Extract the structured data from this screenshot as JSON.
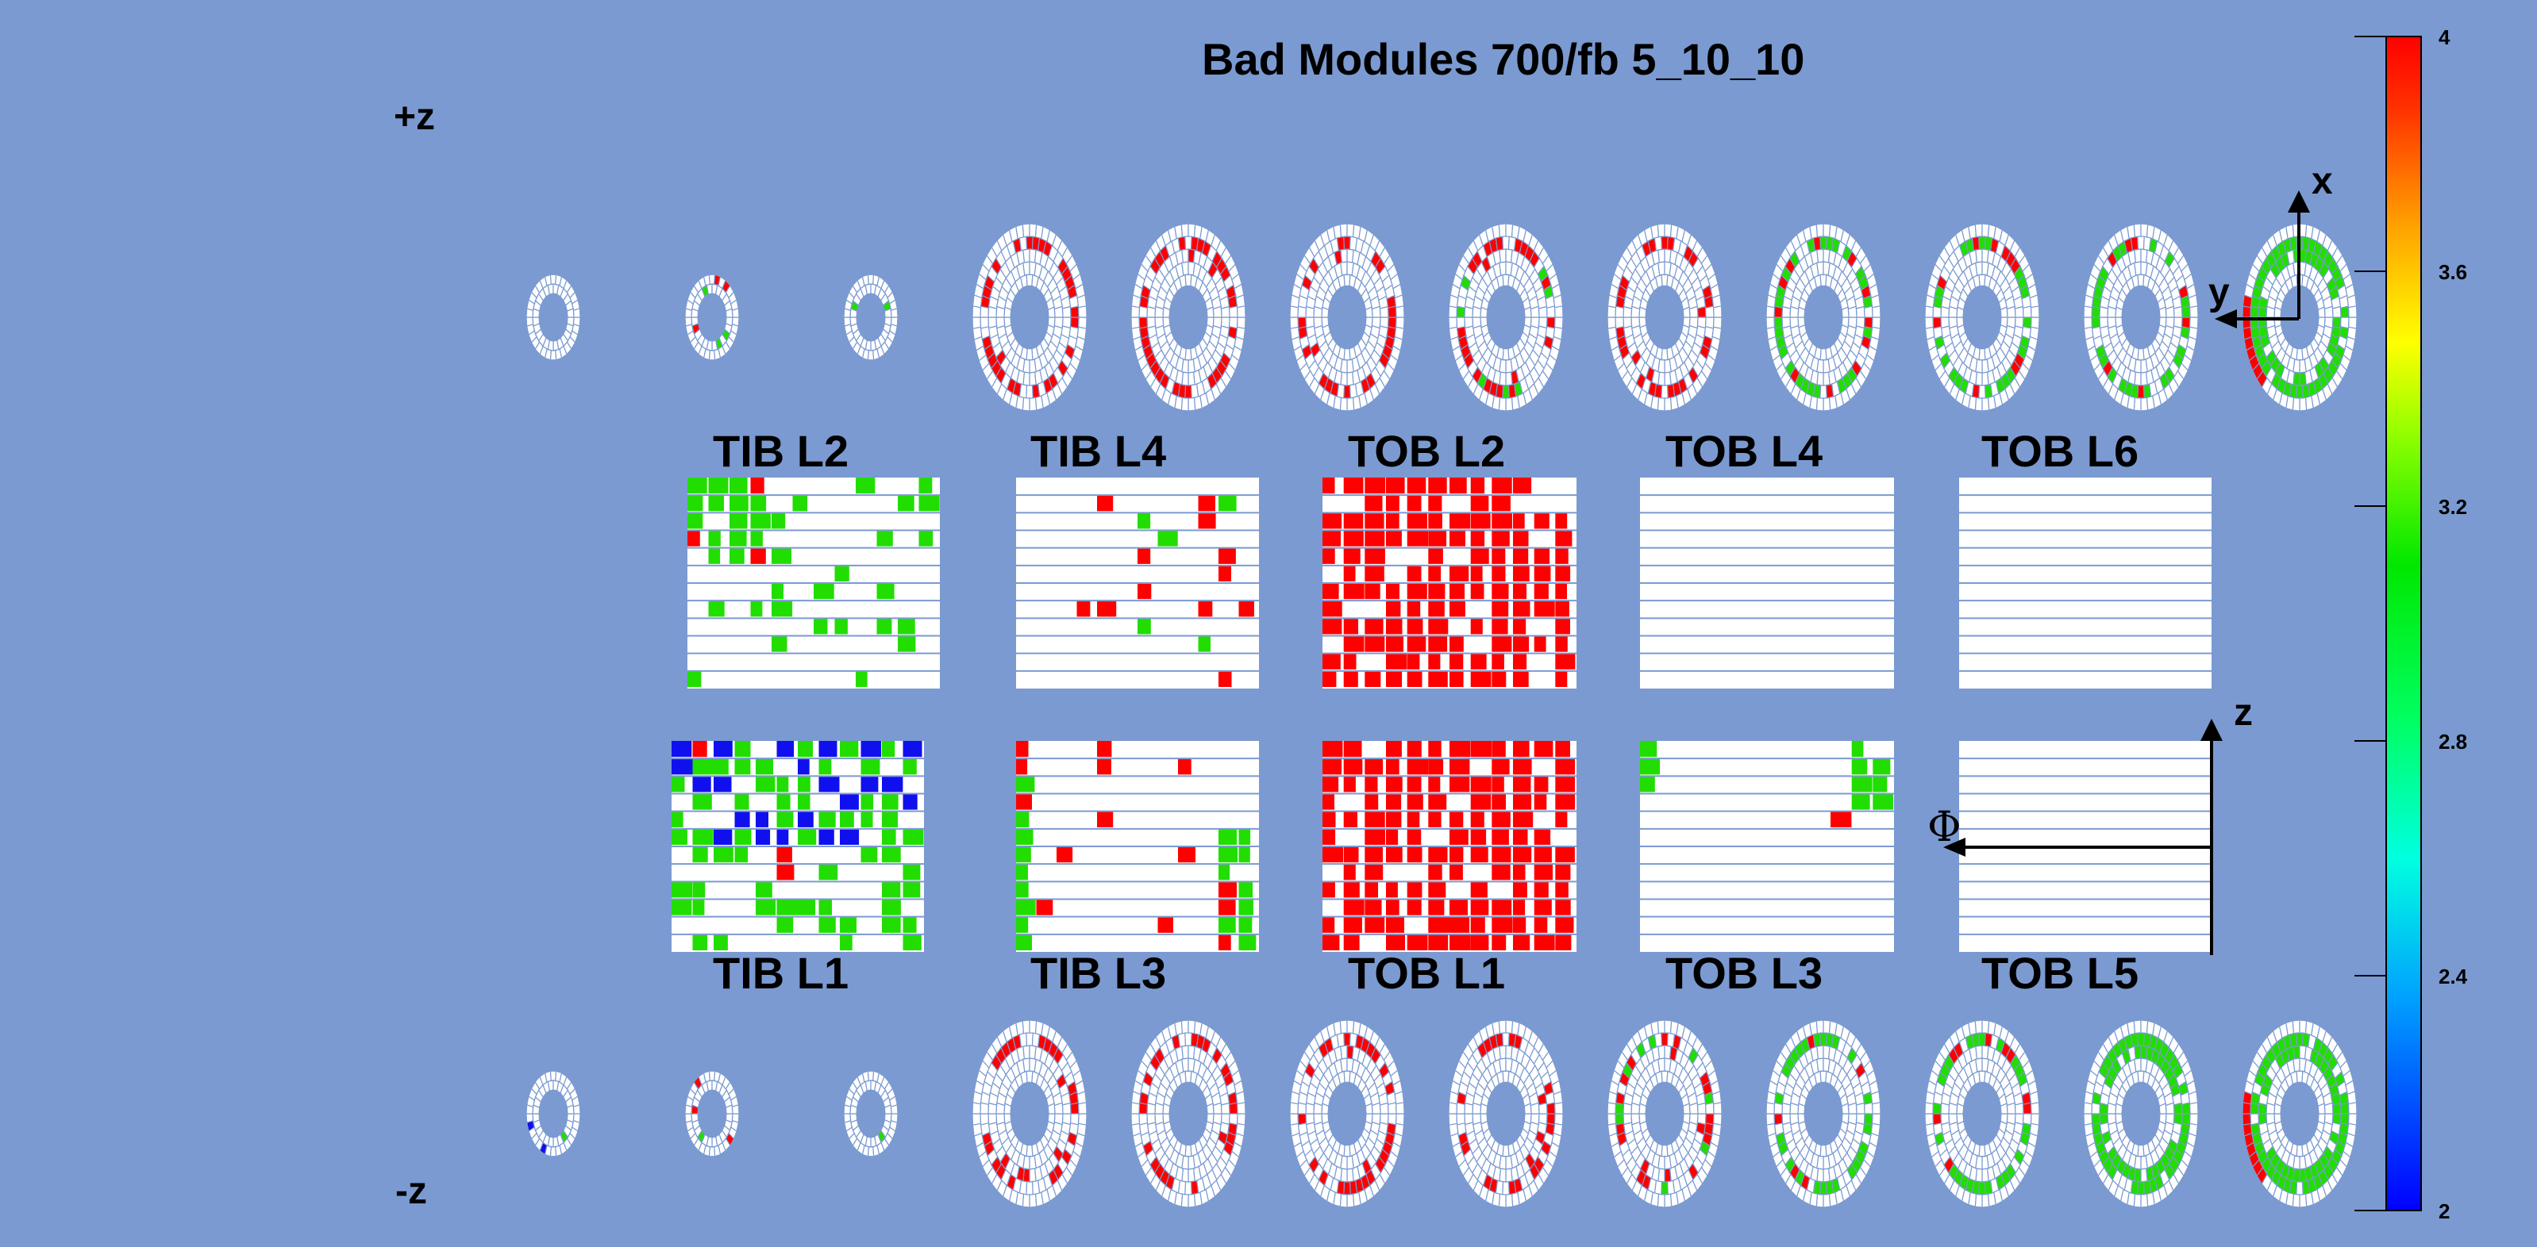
{
  "title": "Bad Modules 700/fb 5_10_10",
  "labels": {
    "plus_z": "+z",
    "minus_z": "-z",
    "axis_x": "x",
    "axis_y": "y",
    "axis_z": "z",
    "axis_phi": "Φ"
  },
  "colors": {
    "background": "#7b9ad1",
    "good": "#ffffff",
    "red": "#ff0000",
    "green": "#22dd00",
    "blue": "#1010ee",
    "grid": "#7b9ad1"
  },
  "chart_data": {
    "type": "heatmap",
    "title": "Bad Modules 700/fb 5_10_10",
    "colorbar": {
      "min": 2,
      "max": 4,
      "ticks": [
        "4",
        "3.6",
        "3.2",
        "2.8",
        "2.4",
        "2"
      ]
    },
    "layers_top": [
      {
        "name": "TIB L2",
        "fill": "tib_mixed"
      },
      {
        "name": "TIB L4",
        "fill": "sparse_red"
      },
      {
        "name": "TOB L2",
        "fill": "mostly_red"
      },
      {
        "name": "TOB L4",
        "fill": "empty"
      },
      {
        "name": "TOB L6",
        "fill": "empty"
      }
    ],
    "layers_bottom": [
      {
        "name": "TIB L1",
        "fill": "tib_blue_green"
      },
      {
        "name": "TIB L3",
        "fill": "mixed_green_red"
      },
      {
        "name": "TOB L1",
        "fill": "full_red"
      },
      {
        "name": "TOB L3",
        "fill": "corner_green"
      },
      {
        "name": "TOB L5",
        "fill": "empty"
      }
    ],
    "disks_plus_z": [
      {
        "size": "small",
        "ring": "none"
      },
      {
        "size": "small",
        "ring": "red_few"
      },
      {
        "size": "small",
        "ring": "none"
      },
      {
        "size": "large",
        "ring": "red"
      },
      {
        "size": "large",
        "ring": "red"
      },
      {
        "size": "large",
        "ring": "red"
      },
      {
        "size": "large",
        "ring": "red_green"
      },
      {
        "size": "large",
        "ring": "red"
      },
      {
        "size": "large",
        "ring": "green_red"
      },
      {
        "size": "large",
        "ring": "green_red"
      },
      {
        "size": "large",
        "ring": "green_red"
      },
      {
        "size": "large",
        "ring": "green_outer_red"
      }
    ],
    "disks_minus_z": [
      {
        "size": "small",
        "ring": "blue_few"
      },
      {
        "size": "small",
        "ring": "red_few"
      },
      {
        "size": "small",
        "ring": "none"
      },
      {
        "size": "large",
        "ring": "red"
      },
      {
        "size": "large",
        "ring": "red"
      },
      {
        "size": "large",
        "ring": "red"
      },
      {
        "size": "large",
        "ring": "red"
      },
      {
        "size": "large",
        "ring": "red_green"
      },
      {
        "size": "large",
        "ring": "green_red"
      },
      {
        "size": "large",
        "ring": "green_red"
      },
      {
        "size": "large",
        "ring": "green"
      },
      {
        "size": "large",
        "ring": "green_outer_red"
      }
    ]
  }
}
